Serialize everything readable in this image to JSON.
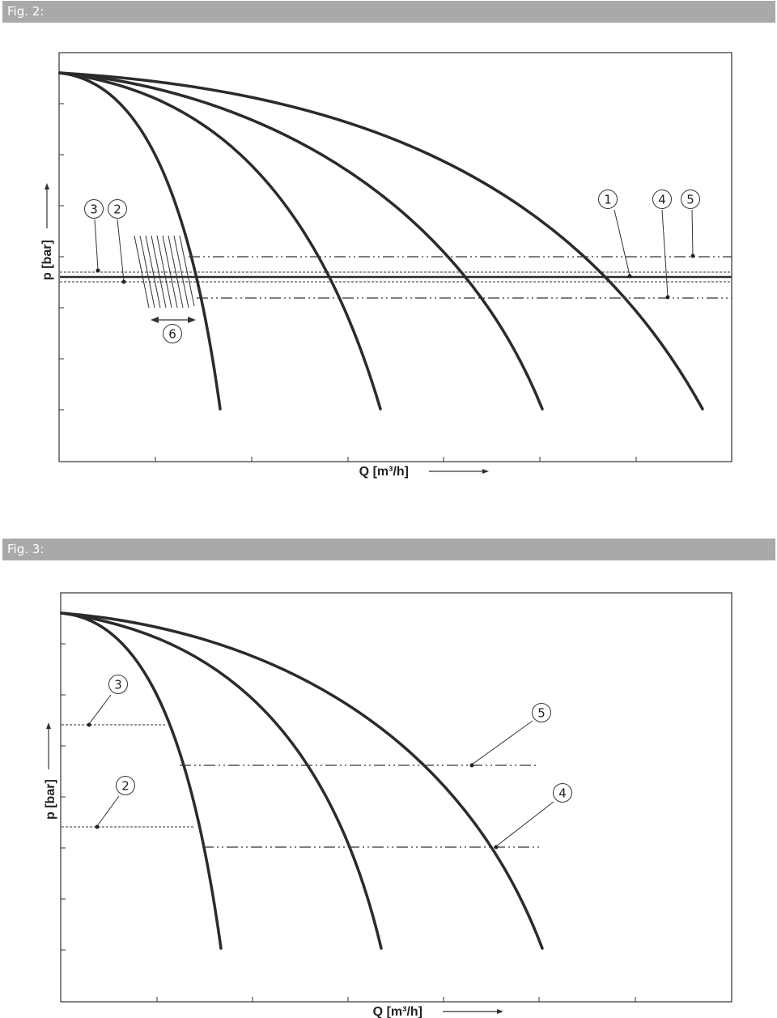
{
  "figures": [
    {
      "title": "Fig. 2:",
      "xlabel": "Q [m³/h]",
      "ylabel": "p [bar]",
      "callouts": [
        "1",
        "2",
        "3",
        "4",
        "5",
        "6"
      ]
    },
    {
      "title": "Fig. 3:",
      "xlabel": "Q [m³/h]",
      "ylabel": "p [bar]",
      "callouts": [
        "2",
        "3",
        "4",
        "5"
      ]
    }
  ],
  "colors": {
    "curve": "#2b2b2b",
    "header": "#a9a9a9",
    "frame": "#333333",
    "header_text": "#ffffff"
  }
}
